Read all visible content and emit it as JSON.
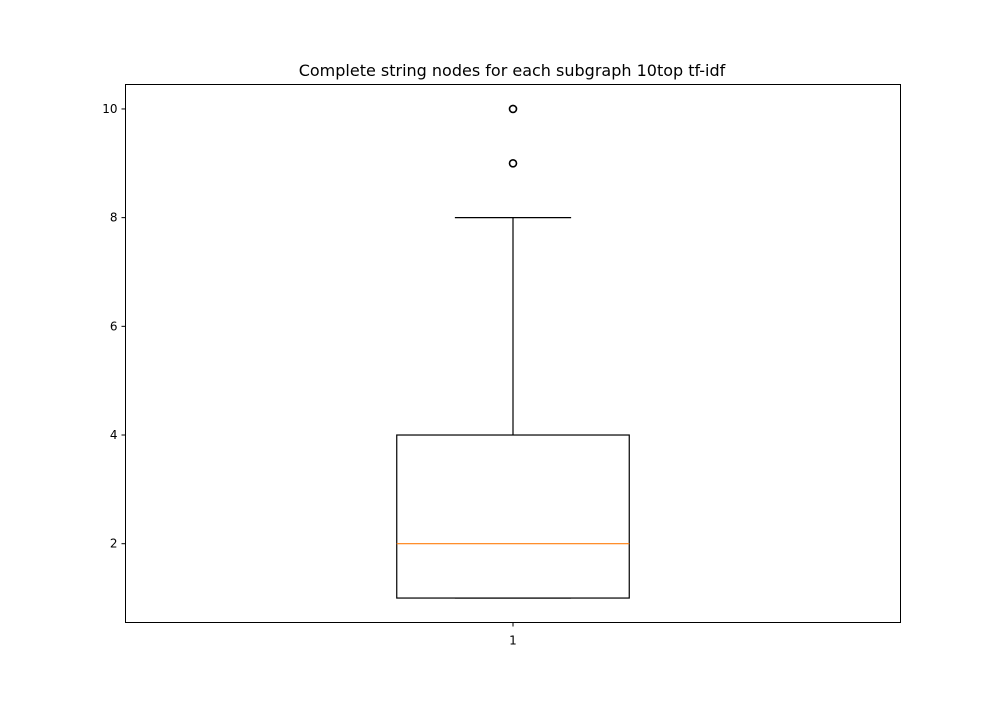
{
  "chart_data": {
    "type": "box",
    "title": "Complete string nodes for each subgraph 10top tf-idf",
    "xlabel": "",
    "ylabel": "",
    "categories": [
      "1"
    ],
    "yticks": [
      "2",
      "4",
      "6",
      "8",
      "10"
    ],
    "ylim": [
      0.55,
      10.45
    ],
    "boxes": [
      {
        "label": "1",
        "whisker_low": 1,
        "q1": 1,
        "median": 2,
        "q3": 4,
        "whisker_high": 8,
        "outliers": [
          9,
          10
        ]
      }
    ],
    "grid": false,
    "legend": "none",
    "colors": {
      "box": "#000000",
      "median": "#ff7f0e",
      "outlier": "#000000"
    }
  }
}
